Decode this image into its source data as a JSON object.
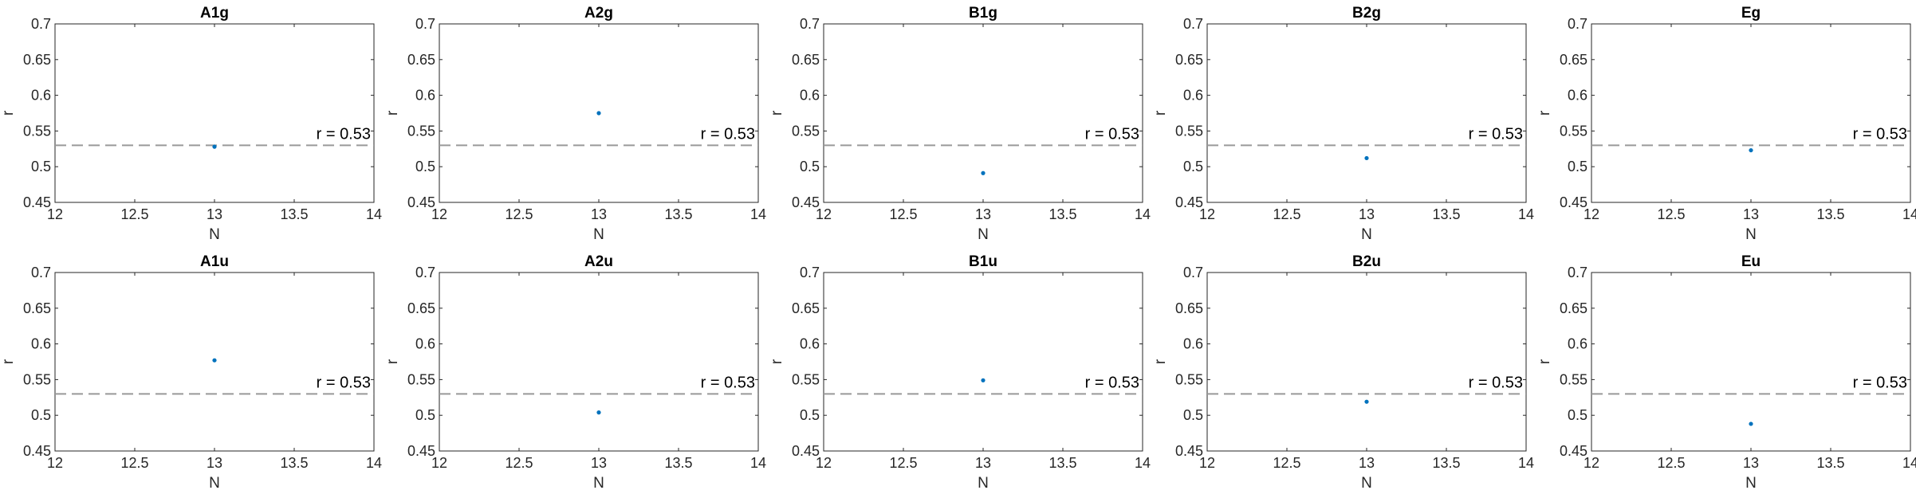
{
  "figure": {
    "style": {
      "background": "#ffffff",
      "axes_color": "#262626",
      "marker_color": "#0072bd",
      "reference_line_color": "#999999"
    }
  },
  "chart_data": [
    {
      "type": "scatter",
      "title": "A1g",
      "xlabel": "N",
      "ylabel": "r",
      "xlim": [
        12,
        14
      ],
      "ylim": [
        0.45,
        0.7
      ],
      "xticks": [
        "12",
        "12.5",
        "13",
        "13.5",
        "14"
      ],
      "yticks": [
        "0.45",
        "0.5",
        "0.55",
        "0.6",
        "0.65",
        "0.7"
      ],
      "x": [
        13
      ],
      "y": [
        0.528
      ],
      "reference_line": {
        "y": 0.53,
        "style": "dashed",
        "label": "r = 0.53"
      },
      "grid": false,
      "legend": "none"
    },
    {
      "type": "scatter",
      "title": "A2g",
      "xlabel": "N",
      "ylabel": "r",
      "xlim": [
        12,
        14
      ],
      "ylim": [
        0.45,
        0.7
      ],
      "xticks": [
        "12",
        "12.5",
        "13",
        "13.5",
        "14"
      ],
      "yticks": [
        "0.45",
        "0.5",
        "0.55",
        "0.6",
        "0.65",
        "0.7"
      ],
      "x": [
        13
      ],
      "y": [
        0.575
      ],
      "reference_line": {
        "y": 0.53,
        "style": "dashed",
        "label": "r = 0.53"
      },
      "grid": false,
      "legend": "none"
    },
    {
      "type": "scatter",
      "title": "B1g",
      "xlabel": "N",
      "ylabel": "r",
      "xlim": [
        12,
        14
      ],
      "ylim": [
        0.45,
        0.7
      ],
      "xticks": [
        "12",
        "12.5",
        "13",
        "13.5",
        "14"
      ],
      "yticks": [
        "0.45",
        "0.5",
        "0.55",
        "0.6",
        "0.65",
        "0.7"
      ],
      "x": [
        13
      ],
      "y": [
        0.491
      ],
      "reference_line": {
        "y": 0.53,
        "style": "dashed",
        "label": "r = 0.53"
      },
      "grid": false,
      "legend": "none"
    },
    {
      "type": "scatter",
      "title": "B2g",
      "xlabel": "N",
      "ylabel": "r",
      "xlim": [
        12,
        14
      ],
      "ylim": [
        0.45,
        0.7
      ],
      "xticks": [
        "12",
        "12.5",
        "13",
        "13.5",
        "14"
      ],
      "yticks": [
        "0.45",
        "0.5",
        "0.55",
        "0.6",
        "0.65",
        "0.7"
      ],
      "x": [
        13
      ],
      "y": [
        0.512
      ],
      "reference_line": {
        "y": 0.53,
        "style": "dashed",
        "label": "r = 0.53"
      },
      "grid": false,
      "legend": "none"
    },
    {
      "type": "scatter",
      "title": "Eg",
      "xlabel": "N",
      "ylabel": "r",
      "xlim": [
        12,
        14
      ],
      "ylim": [
        0.45,
        0.7
      ],
      "xticks": [
        "12",
        "12.5",
        "13",
        "13.5",
        "14"
      ],
      "yticks": [
        "0.45",
        "0.5",
        "0.55",
        "0.6",
        "0.65",
        "0.7"
      ],
      "x": [
        13
      ],
      "y": [
        0.523
      ],
      "reference_line": {
        "y": 0.53,
        "style": "dashed",
        "label": "r = 0.53"
      },
      "grid": false,
      "legend": "none"
    },
    {
      "type": "scatter",
      "title": "A1u",
      "xlabel": "N",
      "ylabel": "r",
      "xlim": [
        12,
        14
      ],
      "ylim": [
        0.45,
        0.7
      ],
      "xticks": [
        "12",
        "12.5",
        "13",
        "13.5",
        "14"
      ],
      "yticks": [
        "0.45",
        "0.5",
        "0.55",
        "0.6",
        "0.65",
        "0.7"
      ],
      "x": [
        13
      ],
      "y": [
        0.577
      ],
      "reference_line": {
        "y": 0.53,
        "style": "dashed",
        "label": "r = 0.53"
      },
      "grid": false,
      "legend": "none"
    },
    {
      "type": "scatter",
      "title": "A2u",
      "xlabel": "N",
      "ylabel": "r",
      "xlim": [
        12,
        14
      ],
      "ylim": [
        0.45,
        0.7
      ],
      "xticks": [
        "12",
        "12.5",
        "13",
        "13.5",
        "14"
      ],
      "yticks": [
        "0.45",
        "0.5",
        "0.55",
        "0.6",
        "0.65",
        "0.7"
      ],
      "x": [
        13
      ],
      "y": [
        0.504
      ],
      "reference_line": {
        "y": 0.53,
        "style": "dashed",
        "label": "r = 0.53"
      },
      "grid": false,
      "legend": "none"
    },
    {
      "type": "scatter",
      "title": "B1u",
      "xlabel": "N",
      "ylabel": "r",
      "xlim": [
        12,
        14
      ],
      "ylim": [
        0.45,
        0.7
      ],
      "xticks": [
        "12",
        "12.5",
        "13",
        "13.5",
        "14"
      ],
      "yticks": [
        "0.45",
        "0.5",
        "0.55",
        "0.6",
        "0.65",
        "0.7"
      ],
      "x": [
        13
      ],
      "y": [
        0.549
      ],
      "reference_line": {
        "y": 0.53,
        "style": "dashed",
        "label": "r = 0.53"
      },
      "grid": false,
      "legend": "none"
    },
    {
      "type": "scatter",
      "title": "B2u",
      "xlabel": "N",
      "ylabel": "r",
      "xlim": [
        12,
        14
      ],
      "ylim": [
        0.45,
        0.7
      ],
      "xticks": [
        "12",
        "12.5",
        "13",
        "13.5",
        "14"
      ],
      "yticks": [
        "0.45",
        "0.5",
        "0.55",
        "0.6",
        "0.65",
        "0.7"
      ],
      "x": [
        13
      ],
      "y": [
        0.519
      ],
      "reference_line": {
        "y": 0.53,
        "style": "dashed",
        "label": "r = 0.53"
      },
      "grid": false,
      "legend": "none"
    },
    {
      "type": "scatter",
      "title": "Eu",
      "xlabel": "N",
      "ylabel": "r",
      "xlim": [
        12,
        14
      ],
      "ylim": [
        0.45,
        0.7
      ],
      "xticks": [
        "12",
        "12.5",
        "13",
        "13.5",
        "14"
      ],
      "yticks": [
        "0.45",
        "0.5",
        "0.55",
        "0.6",
        "0.65",
        "0.7"
      ],
      "x": [
        13
      ],
      "y": [
        0.488
      ],
      "reference_line": {
        "y": 0.53,
        "style": "dashed",
        "label": "r = 0.53"
      },
      "grid": false,
      "legend": "none"
    }
  ]
}
